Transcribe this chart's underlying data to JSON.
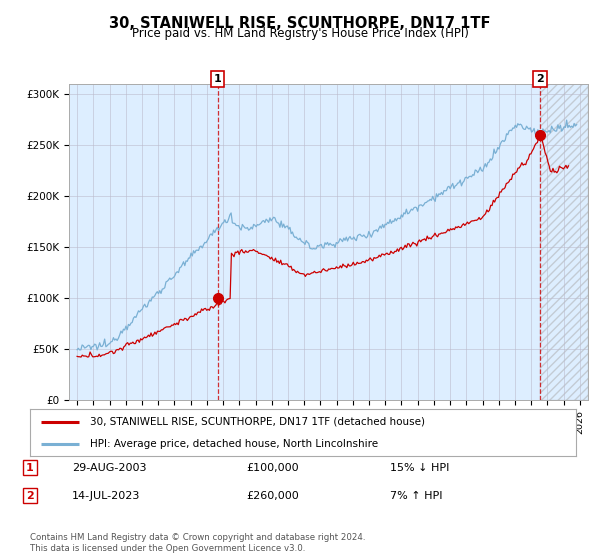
{
  "title": "30, STANIWELL RISE, SCUNTHORPE, DN17 1TF",
  "subtitle": "Price paid vs. HM Land Registry's House Price Index (HPI)",
  "legend_line1": "30, STANIWELL RISE, SCUNTHORPE, DN17 1TF (detached house)",
  "legend_line2": "HPI: Average price, detached house, North Lincolnshire",
  "transaction1_date": "29-AUG-2003",
  "transaction1_price": "£100,000",
  "transaction1_hpi": "15% ↓ HPI",
  "transaction2_date": "14-JUL-2023",
  "transaction2_price": "£260,000",
  "transaction2_hpi": "7% ↑ HPI",
  "footer": "Contains HM Land Registry data © Crown copyright and database right 2024.\nThis data is licensed under the Open Government Licence v3.0.",
  "price_color": "#cc0000",
  "hpi_color": "#7ab0d4",
  "marker_box_color": "#cc0000",
  "plot_bg_color": "#ddeeff",
  "ylim": [
    0,
    310000
  ],
  "yticks": [
    0,
    50000,
    100000,
    150000,
    200000,
    250000,
    300000
  ],
  "ytick_labels": [
    "£0",
    "£50K",
    "£100K",
    "£150K",
    "£200K",
    "£250K",
    "£300K"
  ],
  "year_start": 1995,
  "year_end": 2026,
  "transaction1_year": 2003.66,
  "transaction1_value": 100000,
  "transaction2_year": 2023.54,
  "transaction2_value": 260000,
  "background_color": "#ffffff",
  "grid_color": "#bbbbcc"
}
